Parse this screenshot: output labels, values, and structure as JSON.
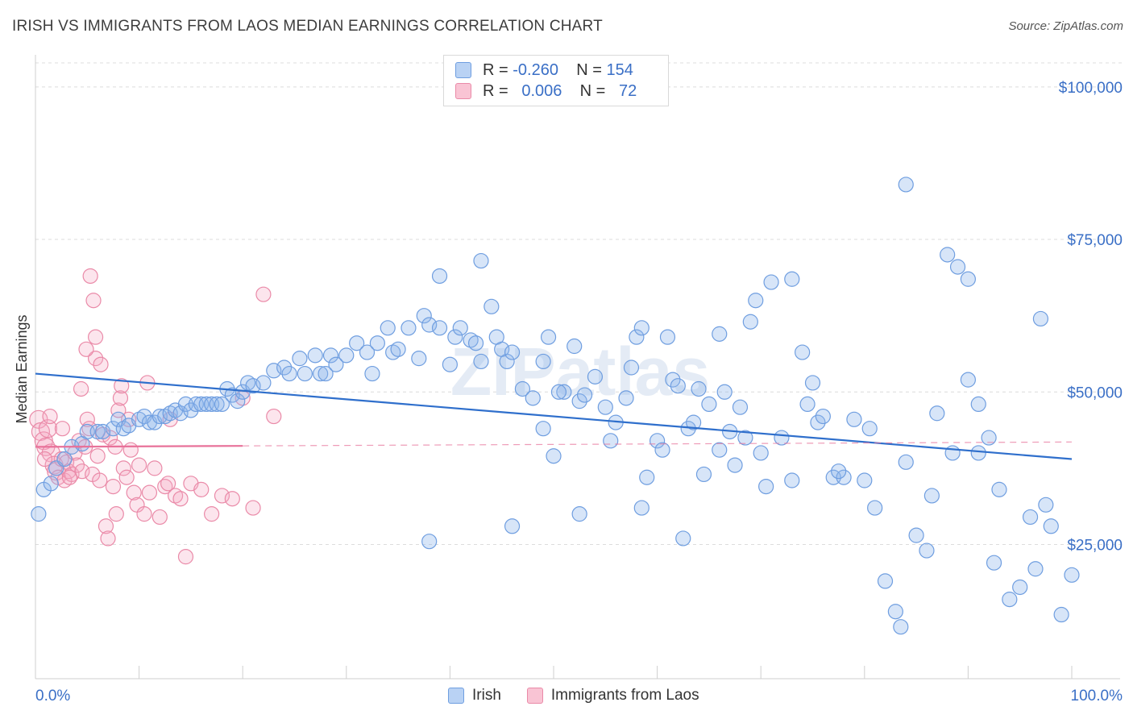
{
  "header": {
    "title": "IRISH VS IMMIGRANTS FROM LAOS MEDIAN EARNINGS CORRELATION CHART",
    "source": "Source: ZipAtlas.com"
  },
  "legend": {
    "rows": [
      {
        "r_label": "R =",
        "r_value": "-0.260",
        "n_label": "N =",
        "n_value": "154"
      },
      {
        "r_label": "R =",
        "r_value": "0.006",
        "n_label": "N =",
        "n_value": "72"
      }
    ]
  },
  "colors": {
    "irish": "#6f9ee0",
    "irish_fill": "rgba(140,180,235,0.35)",
    "laos": "#ea8aa8",
    "laos_fill": "rgba(245,170,195,0.30)",
    "irish_trend": "#2f6fcc",
    "laos_trend": "#e8729a"
  },
  "chart_data": {
    "type": "scatter",
    "title": "IRISH VS IMMIGRANTS FROM LAOS MEDIAN EARNINGS CORRELATION CHART",
    "xlabel": "",
    "ylabel": "Median Earnings",
    "x_tick_labels": [
      "0.0%",
      "100.0%"
    ],
    "y_tick_labels": [
      "$25,000",
      "$50,000",
      "$75,000",
      "$100,000"
    ],
    "y_ticks": [
      25000,
      50000,
      75000,
      100000
    ],
    "xlim": [
      0,
      100
    ],
    "ylim": [
      3000,
      105000
    ],
    "grid": true,
    "legend_position": "bottom-center",
    "series": [
      {
        "name": "Irish",
        "trend": [
          [
            0,
            53000
          ],
          [
            100,
            39000
          ]
        ],
        "points": [
          [
            0.3,
            30000
          ],
          [
            0.8,
            34000
          ],
          [
            1.5,
            35000
          ],
          [
            2.0,
            37500
          ],
          [
            2.8,
            39000
          ],
          [
            3.5,
            41000
          ],
          [
            4.5,
            41500
          ],
          [
            5.0,
            43500
          ],
          [
            6.0,
            43500
          ],
          [
            6.5,
            43500
          ],
          [
            7.5,
            44000
          ],
          [
            8.0,
            45500
          ],
          [
            8.5,
            44000
          ],
          [
            9.0,
            44500
          ],
          [
            10.0,
            45500
          ],
          [
            10.5,
            46000
          ],
          [
            11.0,
            45000
          ],
          [
            11.5,
            45000
          ],
          [
            12.0,
            46000
          ],
          [
            12.5,
            46000
          ],
          [
            13.0,
            46500
          ],
          [
            13.5,
            47000
          ],
          [
            14.0,
            46500
          ],
          [
            14.5,
            48000
          ],
          [
            15.0,
            47000
          ],
          [
            15.5,
            48000
          ],
          [
            16.0,
            48000
          ],
          [
            16.5,
            48000
          ],
          [
            17.0,
            48000
          ],
          [
            17.5,
            48000
          ],
          [
            18.0,
            48000
          ],
          [
            18.5,
            50500
          ],
          [
            19.0,
            49500
          ],
          [
            19.5,
            48500
          ],
          [
            20.0,
            50000
          ],
          [
            20.5,
            51500
          ],
          [
            21.0,
            51000
          ],
          [
            22.0,
            51500
          ],
          [
            23.0,
            53500
          ],
          [
            24.0,
            54000
          ],
          [
            24.5,
            53000
          ],
          [
            25.5,
            55500
          ],
          [
            26.0,
            53000
          ],
          [
            27.0,
            56000
          ],
          [
            27.5,
            53000
          ],
          [
            28.0,
            53000
          ],
          [
            28.5,
            56000
          ],
          [
            29.0,
            54500
          ],
          [
            30.0,
            56000
          ],
          [
            31.0,
            58000
          ],
          [
            32.0,
            56500
          ],
          [
            32.5,
            53000
          ],
          [
            33.0,
            58000
          ],
          [
            34.0,
            60500
          ],
          [
            34.5,
            56500
          ],
          [
            35.0,
            57000
          ],
          [
            36.0,
            60500
          ],
          [
            37.0,
            55500
          ],
          [
            37.5,
            62500
          ],
          [
            38.0,
            61000
          ],
          [
            39.0,
            60500
          ],
          [
            40.0,
            54500
          ],
          [
            40.5,
            59000
          ],
          [
            41.0,
            60500
          ],
          [
            42.0,
            58500
          ],
          [
            42.5,
            58000
          ],
          [
            43.0,
            55000
          ],
          [
            44.0,
            64000
          ],
          [
            44.5,
            59000
          ],
          [
            45.0,
            57000
          ],
          [
            45.5,
            55000
          ],
          [
            46.0,
            56500
          ],
          [
            47.0,
            50500
          ],
          [
            48.0,
            49000
          ],
          [
            49.0,
            55000
          ],
          [
            49.5,
            59000
          ],
          [
            50.0,
            39500
          ],
          [
            51.0,
            50000
          ],
          [
            52.0,
            57500
          ],
          [
            52.5,
            48500
          ],
          [
            53.0,
            49500
          ],
          [
            54.0,
            52500
          ],
          [
            55.0,
            47500
          ],
          [
            56.0,
            45000
          ],
          [
            57.0,
            49000
          ],
          [
            58.0,
            59000
          ],
          [
            58.5,
            60500
          ],
          [
            59.0,
            36000
          ],
          [
            60.0,
            42000
          ],
          [
            61.0,
            59000
          ],
          [
            61.5,
            52000
          ],
          [
            62.0,
            51000
          ],
          [
            63.0,
            44000
          ],
          [
            64.0,
            50500
          ],
          [
            65.0,
            48000
          ],
          [
            66.0,
            59500
          ],
          [
            66.5,
            50000
          ],
          [
            67.0,
            43500
          ],
          [
            68.0,
            47500
          ],
          [
            68.5,
            42500
          ],
          [
            69.0,
            61500
          ],
          [
            70.0,
            40000
          ],
          [
            71.0,
            68000
          ],
          [
            72.0,
            42500
          ],
          [
            73.0,
            35500
          ],
          [
            74.0,
            56500
          ],
          [
            75.0,
            51500
          ],
          [
            75.5,
            45000
          ],
          [
            76.0,
            46000
          ],
          [
            77.0,
            36000
          ],
          [
            78.0,
            36000
          ],
          [
            79.0,
            45500
          ],
          [
            80.0,
            35500
          ],
          [
            81.0,
            31000
          ],
          [
            82.0,
            19000
          ],
          [
            83.0,
            14000
          ],
          [
            84.0,
            38500
          ],
          [
            85.0,
            26500
          ],
          [
            86.0,
            24000
          ],
          [
            87.0,
            46500
          ],
          [
            88.0,
            72500
          ],
          [
            89.0,
            70500
          ],
          [
            90.0,
            68500
          ],
          [
            91.0,
            40000
          ],
          [
            92.0,
            42500
          ],
          [
            93.0,
            34000
          ],
          [
            94.0,
            16000
          ],
          [
            95.0,
            18000
          ],
          [
            96.0,
            29500
          ],
          [
            96.5,
            21000
          ],
          [
            97.0,
            62000
          ],
          [
            98.0,
            28000
          ],
          [
            99.0,
            13500
          ],
          [
            100.0,
            20000
          ],
          [
            63.5,
            45000
          ],
          [
            70.5,
            34500
          ],
          [
            84.0,
            84000
          ],
          [
            39.0,
            69000
          ],
          [
            69.5,
            65000
          ],
          [
            43.0,
            71500
          ],
          [
            90.0,
            52000
          ],
          [
            91.0,
            48000
          ],
          [
            83.5,
            11500
          ],
          [
            73.0,
            68500
          ],
          [
            62.5,
            26000
          ],
          [
            52.5,
            30000
          ],
          [
            58.5,
            31000
          ],
          [
            46.0,
            28000
          ],
          [
            64.5,
            36500
          ],
          [
            38.0,
            25500
          ],
          [
            49.0,
            44000
          ],
          [
            55.5,
            42000
          ],
          [
            60.5,
            40500
          ],
          [
            67.5,
            38000
          ],
          [
            77.5,
            37000
          ],
          [
            86.5,
            33000
          ],
          [
            92.5,
            22000
          ],
          [
            97.5,
            31500
          ],
          [
            88.5,
            40000
          ],
          [
            80.5,
            44000
          ],
          [
            74.5,
            48000
          ],
          [
            66.0,
            40500
          ],
          [
            57.5,
            54000
          ],
          [
            50.5,
            50000
          ]
        ]
      },
      {
        "name": "Immigrants from Laos",
        "trend": [
          [
            0,
            41000
          ],
          [
            100,
            41800
          ]
        ],
        "points": [
          [
            0.3,
            45500
          ],
          [
            0.5,
            43500
          ],
          [
            0.8,
            42000
          ],
          [
            1.0,
            41000
          ],
          [
            1.2,
            44000
          ],
          [
            1.5,
            40000
          ],
          [
            1.8,
            38000
          ],
          [
            2.0,
            37000
          ],
          [
            2.2,
            36000
          ],
          [
            2.5,
            39000
          ],
          [
            2.8,
            35500
          ],
          [
            3.0,
            38500
          ],
          [
            3.2,
            37000
          ],
          [
            3.5,
            36500
          ],
          [
            3.8,
            40000
          ],
          [
            4.0,
            38000
          ],
          [
            4.2,
            42000
          ],
          [
            4.5,
            37000
          ],
          [
            4.8,
            41000
          ],
          [
            5.0,
            45500
          ],
          [
            5.2,
            44000
          ],
          [
            5.5,
            36500
          ],
          [
            5.8,
            55500
          ],
          [
            6.0,
            39500
          ],
          [
            6.2,
            35500
          ],
          [
            6.5,
            43000
          ],
          [
            6.8,
            28000
          ],
          [
            7.0,
            26000
          ],
          [
            7.2,
            42500
          ],
          [
            7.5,
            34500
          ],
          [
            7.8,
            30000
          ],
          [
            8.0,
            47000
          ],
          [
            8.2,
            49000
          ],
          [
            8.5,
            37500
          ],
          [
            8.8,
            36000
          ],
          [
            9.0,
            45500
          ],
          [
            9.2,
            40500
          ],
          [
            9.5,
            33500
          ],
          [
            9.8,
            31500
          ],
          [
            10.0,
            38000
          ],
          [
            10.5,
            30000
          ],
          [
            11.0,
            33500
          ],
          [
            11.5,
            37500
          ],
          [
            12.0,
            29500
          ],
          [
            12.5,
            34500
          ],
          [
            13.0,
            45500
          ],
          [
            13.5,
            33000
          ],
          [
            14.0,
            32500
          ],
          [
            14.5,
            23000
          ],
          [
            15.0,
            35000
          ],
          [
            16.0,
            34000
          ],
          [
            17.0,
            30000
          ],
          [
            18.0,
            33000
          ],
          [
            19.0,
            32500
          ],
          [
            20.0,
            49000
          ],
          [
            21.0,
            31000
          ],
          [
            22.0,
            66000
          ],
          [
            23.0,
            46000
          ],
          [
            5.3,
            69000
          ],
          [
            5.6,
            65000
          ],
          [
            5.8,
            59000
          ],
          [
            4.9,
            57000
          ],
          [
            8.3,
            51000
          ],
          [
            6.3,
            54500
          ],
          [
            4.4,
            50500
          ],
          [
            2.6,
            44000
          ],
          [
            1.4,
            46000
          ],
          [
            0.9,
            39000
          ],
          [
            3.3,
            36000
          ],
          [
            7.7,
            41000
          ],
          [
            10.8,
            51500
          ],
          [
            12.8,
            35000
          ]
        ]
      }
    ]
  },
  "watermark": "ZIPatlas",
  "bottom_legend": [
    {
      "label": "Irish"
    },
    {
      "label": "Immigrants from Laos"
    }
  ]
}
